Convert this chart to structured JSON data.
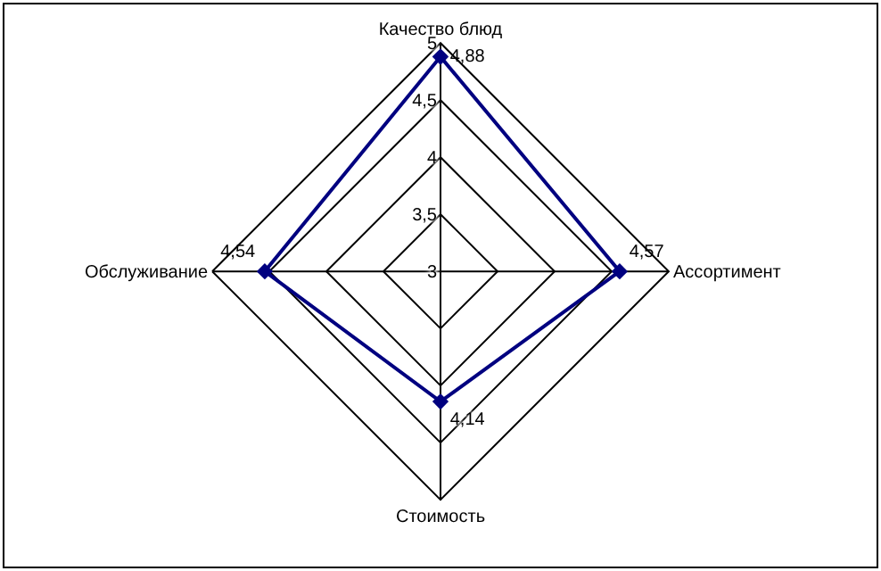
{
  "chart_data": {
    "type": "radar",
    "categories": [
      "Качество блюд",
      "Ассортимент",
      "Стоимость",
      "Обслуживание"
    ],
    "series": [
      {
        "color": "#000080",
        "values": [
          4.88,
          4.57,
          4.14,
          4.54
        ],
        "value_labels": [
          "4,88",
          "4,57",
          "4,14",
          "4,54"
        ]
      }
    ],
    "ylim": [
      3,
      5
    ],
    "yticks": [
      3,
      {
        "value": 3.5,
        "label": "3,5"
      },
      4,
      {
        "value": 4.5,
        "label": "4,5"
      },
      5
    ],
    "marker": "diamond",
    "line_style": "solid",
    "grid": true,
    "legend": false
  }
}
